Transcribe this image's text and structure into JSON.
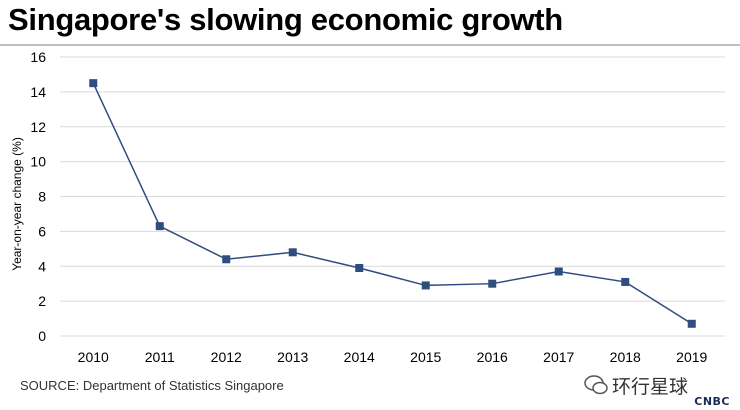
{
  "title": "Singapore's slowing economic growth",
  "source": "SOURCE: Department of Statistics Singapore",
  "watermark": {
    "text": "环行星球",
    "brand": "CNBC"
  },
  "colors": {
    "line": "#2f4d7e",
    "marker": "#2f4d7e",
    "grid": "#d9d9d9",
    "text": "#000000"
  },
  "chart_data": {
    "type": "line",
    "title": "Singapore's slowing economic growth",
    "xlabel": "",
    "ylabel": "Year-on-year change (%)",
    "ylim": [
      0,
      16
    ],
    "yticks": [
      0,
      2,
      4,
      6,
      8,
      10,
      12,
      14,
      16
    ],
    "grid": true,
    "legend": "none",
    "categories": [
      "2010",
      "2011",
      "2012",
      "2013",
      "2014",
      "2015",
      "2016",
      "2017",
      "2018",
      "2019"
    ],
    "series": [
      {
        "values": [
          14.5,
          6.3,
          4.4,
          4.8,
          3.9,
          2.9,
          3.0,
          3.7,
          3.1,
          0.7
        ]
      }
    ]
  }
}
